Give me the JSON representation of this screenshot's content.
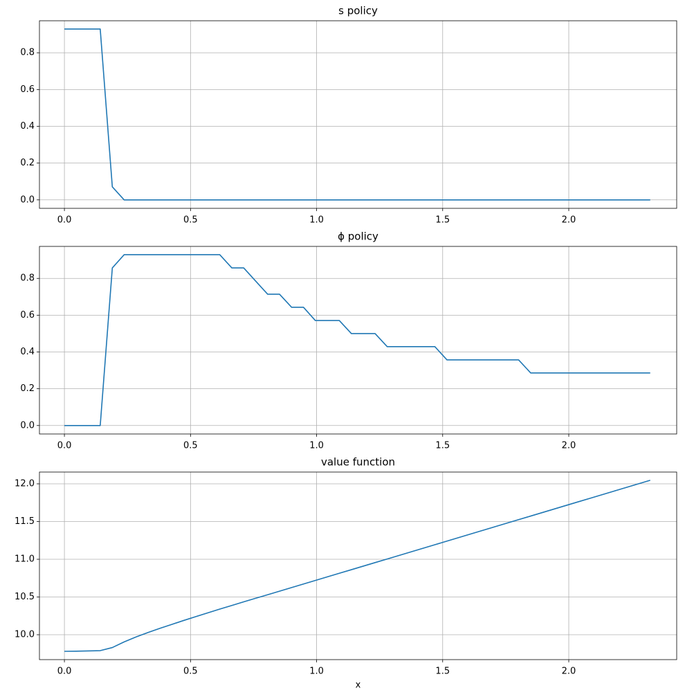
{
  "chart_data": [
    {
      "type": "line",
      "title": "s policy",
      "x": [
        0,
        0.047,
        0.095,
        0.142,
        0.19,
        0.237,
        0.284,
        0.332,
        0.379,
        0.427,
        0.474,
        0.521,
        0.569,
        0.616,
        0.664,
        0.711,
        0.758,
        0.806,
        0.853,
        0.901,
        0.948,
        0.995,
        1.043,
        1.09,
        1.138,
        1.185,
        1.232,
        1.28,
        1.327,
        1.375,
        1.422,
        1.469,
        1.517,
        1.564,
        1.612,
        1.659,
        1.706,
        1.754,
        1.801,
        1.849,
        1.896,
        1.943,
        1.991,
        2.038,
        2.086,
        2.133,
        2.18,
        2.228,
        2.275,
        2.323
      ],
      "series": [
        {
          "color": "#1f77b4",
          "values": [
            0.929,
            0.929,
            0.929,
            0.929,
            0.071,
            0,
            0,
            0,
            0,
            0,
            0,
            0,
            0,
            0,
            0,
            0,
            0,
            0,
            0,
            0,
            0,
            0,
            0,
            0,
            0,
            0,
            0,
            0,
            0,
            0,
            0,
            0,
            0,
            0,
            0,
            0,
            0,
            0,
            0,
            0,
            0,
            0,
            0,
            0,
            0,
            0,
            0,
            0,
            0,
            0
          ]
        }
      ],
      "xlim": [
        -0.099,
        2.428
      ],
      "ylim": [
        -0.046,
        0.974
      ],
      "xticks": [
        {
          "value": 0,
          "label": "0.0"
        },
        0.5,
        {
          "value": 1,
          "label": "1.0"
        },
        1.5,
        {
          "value": 2,
          "label": "2.0"
        }
      ],
      "yticks": [
        {
          "value": 0,
          "label": "0.0"
        },
        0.2,
        0.4,
        0.6,
        0.8
      ],
      "grid": true
    },
    {
      "type": "line",
      "title": "ϕ policy",
      "x": [
        0,
        0.047,
        0.095,
        0.142,
        0.19,
        0.237,
        0.284,
        0.332,
        0.379,
        0.427,
        0.474,
        0.521,
        0.569,
        0.616,
        0.664,
        0.711,
        0.758,
        0.806,
        0.853,
        0.901,
        0.948,
        0.995,
        1.043,
        1.09,
        1.138,
        1.185,
        1.232,
        1.28,
        1.327,
        1.375,
        1.422,
        1.469,
        1.517,
        1.564,
        1.612,
        1.659,
        1.706,
        1.754,
        1.801,
        1.849,
        1.896,
        1.943,
        1.991,
        2.038,
        2.086,
        2.133,
        2.18,
        2.228,
        2.275,
        2.323
      ],
      "series": [
        {
          "color": "#1f77b4",
          "values": [
            0,
            0,
            0,
            0,
            0.857,
            0.929,
            0.929,
            0.929,
            0.929,
            0.929,
            0.929,
            0.929,
            0.929,
            0.929,
            0.857,
            0.857,
            0.786,
            0.714,
            0.714,
            0.643,
            0.643,
            0.571,
            0.571,
            0.571,
            0.5,
            0.5,
            0.5,
            0.429,
            0.429,
            0.429,
            0.429,
            0.429,
            0.357,
            0.357,
            0.357,
            0.357,
            0.357,
            0.357,
            0.357,
            0.286,
            0.286,
            0.286,
            0.286,
            0.286,
            0.286,
            0.286,
            0.286,
            0.286,
            0.286,
            0.286
          ]
        }
      ],
      "xlim": [
        -0.099,
        2.428
      ],
      "ylim": [
        -0.046,
        0.974
      ],
      "xticks": [
        {
          "value": 0,
          "label": "0.0"
        },
        0.5,
        {
          "value": 1,
          "label": "1.0"
        },
        1.5,
        {
          "value": 2,
          "label": "2.0"
        }
      ],
      "yticks": [
        {
          "value": 0,
          "label": "0.0"
        },
        0.2,
        0.4,
        0.6,
        0.8
      ],
      "grid": true
    },
    {
      "type": "line",
      "title": "value function",
      "xlabel": "x",
      "x": [
        0,
        0.047,
        0.095,
        0.142,
        0.19,
        0.237,
        0.284,
        0.332,
        0.379,
        0.427,
        0.474,
        0.521,
        0.569,
        0.616,
        0.664,
        0.711,
        0.758,
        0.806,
        0.853,
        0.901,
        0.948,
        0.995,
        1.043,
        1.09,
        1.138,
        1.185,
        1.232,
        1.28,
        1.327,
        1.375,
        1.422,
        1.469,
        1.517,
        1.564,
        1.612,
        1.659,
        1.706,
        1.754,
        1.801,
        1.849,
        1.896,
        1.943,
        1.991,
        2.038,
        2.086,
        2.133,
        2.18,
        2.228,
        2.275,
        2.323
      ],
      "series": [
        {
          "color": "#1f77b4",
          "values": [
            9.78,
            9.782,
            9.785,
            9.789,
            9.83,
            9.905,
            9.97,
            10.03,
            10.085,
            10.138,
            10.19,
            10.24,
            10.29,
            10.34,
            10.388,
            10.436,
            10.483,
            10.53,
            10.577,
            10.625,
            10.672,
            10.719,
            10.767,
            10.814,
            10.862,
            10.909,
            10.956,
            11.004,
            11.051,
            11.099,
            11.146,
            11.193,
            11.241,
            11.288,
            11.336,
            11.383,
            11.43,
            11.478,
            11.525,
            11.573,
            11.62,
            11.667,
            11.715,
            11.762,
            11.81,
            11.857,
            11.904,
            11.952,
            11.999,
            12.047
          ]
        }
      ],
      "xlim": [
        -0.099,
        2.428
      ],
      "ylim": [
        9.67,
        12.156
      ],
      "xticks": [
        {
          "value": 0,
          "label": "0.0"
        },
        0.5,
        {
          "value": 1,
          "label": "1.0"
        },
        1.5,
        {
          "value": 2,
          "label": "2.0"
        }
      ],
      "yticks": [
        {
          "value": 10,
          "label": "10.0"
        },
        10.5,
        {
          "value": 11,
          "label": "11.0"
        },
        11.5,
        {
          "value": 12,
          "label": "12.0"
        }
      ],
      "grid": true
    }
  ]
}
